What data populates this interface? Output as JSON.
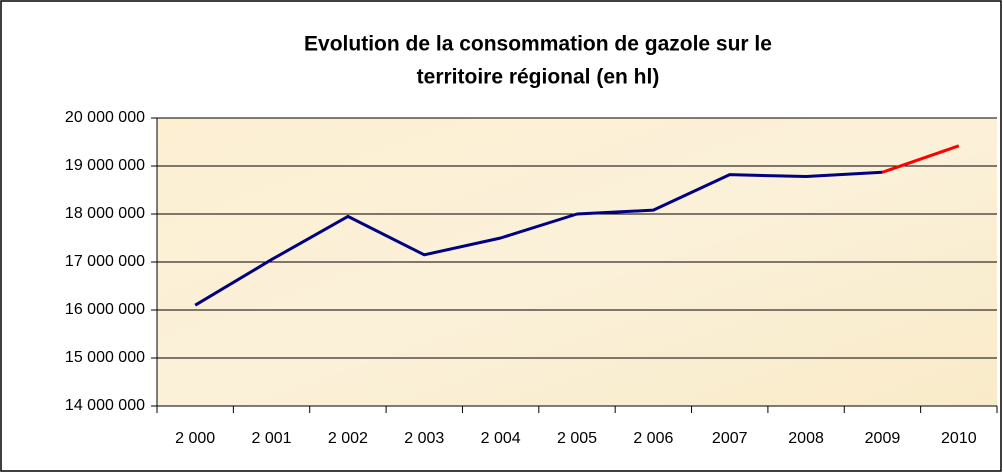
{
  "chart_data": {
    "type": "line",
    "title": [
      "Evolution de la consommation de gazole sur le",
      "territoire régional (en hl)"
    ],
    "categories": [
      "2 000",
      "2 001",
      "2 002",
      "2 003",
      "2 004",
      "2 005",
      "2 006",
      "2007",
      "2008",
      "2009",
      "2010"
    ],
    "series": [
      {
        "color": "#000080",
        "values": [
          16100000,
          17050000,
          17950000,
          17150000,
          17500000,
          18000000,
          18080000,
          18820000,
          18780000,
          18870000,
          null
        ]
      },
      {
        "color": "#ff0000",
        "values": [
          null,
          null,
          null,
          null,
          null,
          null,
          null,
          null,
          null,
          18870000,
          19420000
        ]
      }
    ],
    "ylim": [
      14000000,
      20000000
    ],
    "yticks": [
      {
        "value": 14000000,
        "label": "14 000 000"
      },
      {
        "value": 15000000,
        "label": "15 000 000"
      },
      {
        "value": 16000000,
        "label": "16 000 000"
      },
      {
        "value": 17000000,
        "label": "17 000 000"
      },
      {
        "value": 18000000,
        "label": "18 000 000"
      },
      {
        "value": 19000000,
        "label": "19 000 000"
      },
      {
        "value": 20000000,
        "label": "20 000 000"
      }
    ],
    "grid": true
  }
}
